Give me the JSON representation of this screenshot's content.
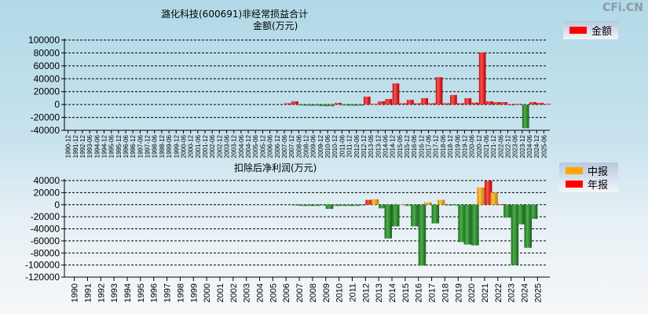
{
  "watermark": "CFi.CN",
  "colors": {
    "positive": "#ff1a1a",
    "negative": "#2e8b2e",
    "mid_report": "#ffa500",
    "annual_report": "#ff0000"
  },
  "chart_data": [
    {
      "type": "bar",
      "title": "潞化科技(600691)非经常损益合计",
      "ylabel": "金额(万元)",
      "legend": [
        "金额"
      ],
      "legend_position": "top-right",
      "ylim": [
        -40000,
        100000
      ],
      "yticks": [
        100000,
        80000,
        60000,
        40000,
        20000,
        0,
        -20000,
        -40000
      ],
      "grid": true,
      "categories": [
        "1990-12",
        "1991-12",
        "1992-12",
        "1993-06",
        "1994-06",
        "1994-12",
        "1995-06",
        "1995-12",
        "1996-06",
        "1996-12",
        "1997-06",
        "1997-12",
        "1998-06",
        "1998-12",
        "1999-06",
        "1999-12",
        "2000-06",
        "2000-12",
        "2001-06",
        "2001-12",
        "2002-06",
        "2002-12",
        "2003-06",
        "2003-12",
        "2004-06",
        "2004-12",
        "2005-06",
        "2005-12",
        "2006-06",
        "2006-12",
        "2007-06",
        "2007-12",
        "2008-06",
        "2008-12",
        "2009-06",
        "2009-12",
        "2010-06",
        "2010-12",
        "2011-06",
        "2011-12",
        "2012-06",
        "2012-12",
        "2013-06",
        "2013-12",
        "2014-06",
        "2014-12",
        "2015-06",
        "2015-12",
        "2016-06",
        "2016-12",
        "2017-06",
        "2017-12",
        "2018-06",
        "2018-12",
        "2019-06",
        "2019-12",
        "2020-06",
        "2020-12",
        "2021-06",
        "2021-12",
        "2022-06",
        "2022-12",
        "2023-06",
        "2023-12",
        "2024-06",
        "2024-12",
        "2025-06"
      ],
      "values": [
        null,
        null,
        null,
        null,
        null,
        null,
        null,
        null,
        null,
        null,
        null,
        null,
        null,
        null,
        null,
        null,
        null,
        null,
        null,
        null,
        null,
        null,
        null,
        null,
        null,
        null,
        null,
        null,
        null,
        null,
        2000,
        4900,
        -1500,
        -1800,
        -1800,
        -2500,
        -2500,
        2500,
        -1500,
        -1800,
        -1800,
        12200,
        1000,
        4900,
        8600,
        32700,
        2000,
        7300,
        2000,
        9800,
        2000,
        42400,
        2000,
        14700,
        2000,
        9800,
        3000,
        80800,
        4900,
        3700,
        3700,
        0,
        1000,
        -36700,
        3700,
        2500,
        1000
      ]
    },
    {
      "type": "bar",
      "title": "扣除后净利润(万元)",
      "legend": [
        "中报",
        "年报"
      ],
      "legend_position": "top-right",
      "ylim": [
        -120000,
        40000
      ],
      "yticks": [
        40000,
        20000,
        0,
        -20000,
        -40000,
        -60000,
        -80000,
        -100000,
        -120000
      ],
      "grid": true,
      "categories": [
        "1990",
        "1991",
        "1992",
        "1993",
        "1994",
        "1995",
        "1996",
        "1997",
        "1998",
        "1999",
        "2000",
        "2001",
        "2002",
        "2003",
        "2004",
        "2005",
        "2006",
        "2007",
        "2008",
        "2009",
        "2010",
        "2011",
        "2012",
        "2013",
        "2014",
        "2015",
        "2016",
        "2017",
        "2018",
        "2019",
        "2020",
        "2021",
        "2022",
        "2023",
        "2024",
        "2025"
      ],
      "series": [
        {
          "name": "中报",
          "values": [
            null,
            null,
            null,
            null,
            null,
            null,
            null,
            null,
            null,
            null,
            null,
            null,
            null,
            null,
            null,
            null,
            null,
            -500,
            -2000,
            -1000,
            -2000,
            -2000,
            -1000,
            9000,
            -56000,
            1000,
            -36000,
            4000,
            8000,
            -1000,
            -66000,
            28500,
            20000,
            -21500,
            -32500,
            -23500
          ]
        },
        {
          "name": "年报",
          "values": [
            null,
            null,
            null,
            null,
            null,
            null,
            null,
            null,
            null,
            null,
            null,
            null,
            null,
            null,
            null,
            null,
            null,
            -2000,
            -2000,
            -7000,
            -2000,
            -2000,
            8000,
            -6000,
            -36000,
            -2000,
            -101000,
            -31000,
            -1000,
            -62000,
            -67500,
            39500,
            1000,
            -100000,
            -71500,
            null
          ]
        }
      ]
    }
  ]
}
